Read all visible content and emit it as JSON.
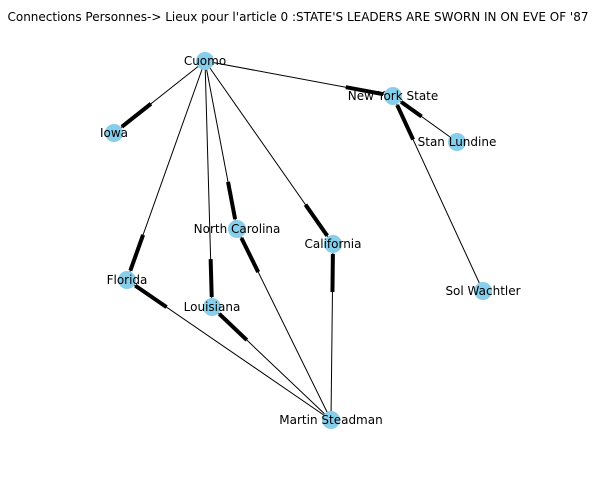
{
  "title": "Connections Personnes-> Lieux pour l'article 0 :STATE'S LEADERS ARE SWORN IN ON EVE OF '87",
  "colors": {
    "node": "#87ceeb",
    "edge": "#000000",
    "text": "#000000",
    "background": "#ffffff"
  },
  "nodes": [
    {
      "id": "cuomo",
      "label": "Cuomo"
    },
    {
      "id": "nys",
      "label": "New York State"
    },
    {
      "id": "iowa",
      "label": "Iowa"
    },
    {
      "id": "lundine",
      "label": "Stan Lundine"
    },
    {
      "id": "nc",
      "label": "North Carolina"
    },
    {
      "id": "california",
      "label": "California"
    },
    {
      "id": "florida",
      "label": "Florida"
    },
    {
      "id": "louisiana",
      "label": "Louisiana"
    },
    {
      "id": "wachtler",
      "label": "Sol Wachtler"
    },
    {
      "id": "steadman",
      "label": "Martin Steadman"
    }
  ],
  "edges": [
    {
      "source": "cuomo",
      "target": "nys"
    },
    {
      "source": "cuomo",
      "target": "iowa"
    },
    {
      "source": "cuomo",
      "target": "florida"
    },
    {
      "source": "cuomo",
      "target": "louisiana"
    },
    {
      "source": "cuomo",
      "target": "nc"
    },
    {
      "source": "cuomo",
      "target": "california"
    },
    {
      "source": "lundine",
      "target": "nys"
    },
    {
      "source": "wachtler",
      "target": "nys"
    },
    {
      "source": "steadman",
      "target": "florida"
    },
    {
      "source": "steadman",
      "target": "louisiana"
    },
    {
      "source": "steadman",
      "target": "nc"
    },
    {
      "source": "steadman",
      "target": "california"
    }
  ]
}
